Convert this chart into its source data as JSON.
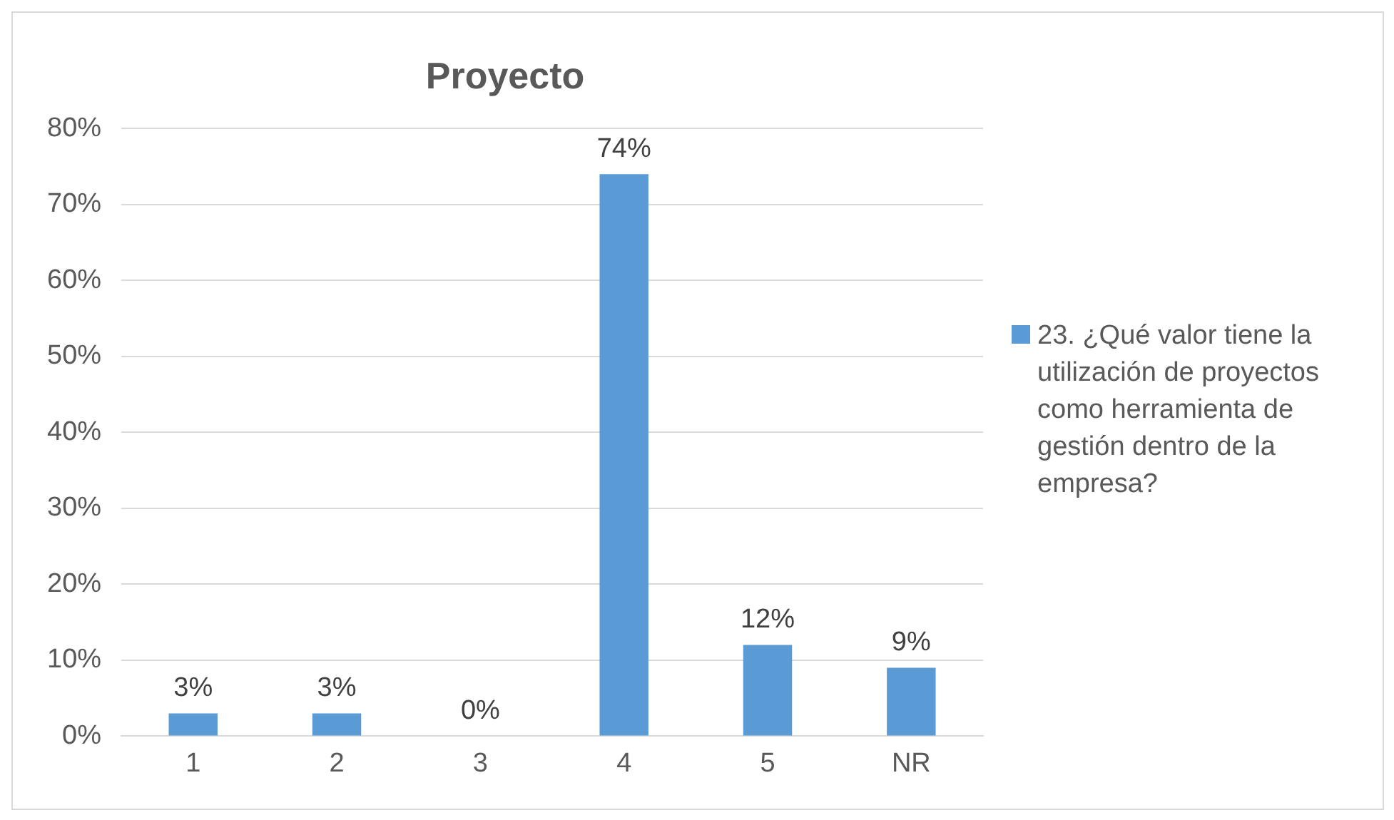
{
  "chart_data": {
    "type": "bar",
    "title": "Proyecto",
    "categories": [
      "1",
      "2",
      "3",
      "4",
      "5",
      "NR"
    ],
    "series": [
      {
        "name": "23. ¿Qué valor tiene la utilización de proyectos como herramienta de gestión dentro de la empresa?",
        "color": "#5b9bd5",
        "values": [
          3,
          3,
          0,
          74,
          12,
          9
        ]
      }
    ],
    "value_labels": [
      "3%",
      "3%",
      "0%",
      "74%",
      "12%",
      "9%"
    ],
    "ylim": [
      0,
      80
    ],
    "yticks": [
      {
        "value": 0,
        "label": "0%"
      },
      {
        "value": 10,
        "label": "10%"
      },
      {
        "value": 20,
        "label": "20%"
      },
      {
        "value": 30,
        "label": "30%"
      },
      {
        "value": 40,
        "label": "40%"
      },
      {
        "value": 50,
        "label": "50%"
      },
      {
        "value": 60,
        "label": "60%"
      },
      {
        "value": 70,
        "label": "70%"
      },
      {
        "value": 80,
        "label": "80%"
      }
    ],
    "grid": "y",
    "legend": "right"
  }
}
